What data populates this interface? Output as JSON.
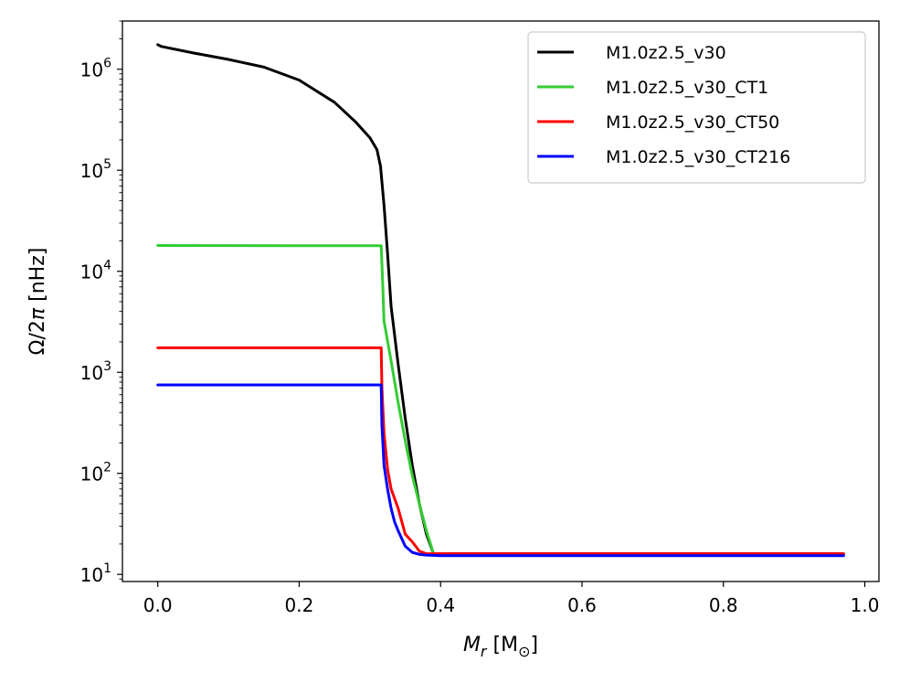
{
  "chart_data": {
    "type": "line",
    "xlabel": {
      "main": "M",
      "sub": "r",
      "unit_pre": " [M",
      "unit_sub": "⊙",
      "unit_post": "]"
    },
    "ylabel": {
      "main": "Ω/2",
      "pi": "π",
      "unit": " [nHz]"
    },
    "xlim": [
      -0.05,
      1.02
    ],
    "ylim": [
      8.5,
      3000000
    ],
    "yscale": "log",
    "x_ticks": [
      0.0,
      0.2,
      0.4,
      0.6,
      0.8,
      1.0
    ],
    "x_tick_labels": [
      "0.0",
      "0.2",
      "0.4",
      "0.6",
      "0.8",
      "1.0"
    ],
    "y_ticks": [
      10,
      100,
      1000,
      10000,
      100000,
      1000000
    ],
    "y_tick_labels": [
      {
        "base": "10",
        "exp": "1"
      },
      {
        "base": "10",
        "exp": "2"
      },
      {
        "base": "10",
        "exp": "3"
      },
      {
        "base": "10",
        "exp": "4"
      },
      {
        "base": "10",
        "exp": "5"
      },
      {
        "base": "10",
        "exp": "6"
      }
    ],
    "grid": false,
    "legend_position": "top-right",
    "series": [
      {
        "name": "M1.0z2.5_v30",
        "color": "#000000",
        "x": [
          0.0,
          0.005,
          0.05,
          0.1,
          0.15,
          0.2,
          0.25,
          0.28,
          0.3,
          0.31,
          0.315,
          0.32,
          0.325,
          0.33,
          0.34,
          0.35,
          0.36,
          0.37,
          0.38,
          0.39,
          0.5,
          0.7,
          0.9,
          0.97
        ],
        "y": [
          1750000,
          1680000,
          1450000,
          1250000,
          1050000,
          780000,
          470000,
          300000,
          210000,
          160000,
          110000,
          45000,
          15000,
          4500,
          1200,
          350,
          120,
          50,
          25,
          16,
          16,
          16,
          16,
          16
        ]
      },
      {
        "name": "M1.0z2.5_v30_CT1",
        "color": "#33cc33",
        "x": [
          0.0,
          0.1,
          0.2,
          0.3,
          0.316,
          0.318,
          0.32,
          0.33,
          0.34,
          0.35,
          0.36,
          0.37,
          0.38,
          0.39,
          0.5,
          0.7,
          0.9,
          0.97
        ],
        "y": [
          18000,
          17950,
          17900,
          17900,
          17900,
          8000,
          3200,
          1300,
          500,
          210,
          95,
          50,
          27,
          16,
          15.5,
          15.5,
          15.5,
          15.5
        ]
      },
      {
        "name": "M1.0z2.5_v30_CT50",
        "color": "#ff0000",
        "x": [
          0.0,
          0.1,
          0.2,
          0.3,
          0.316,
          0.317,
          0.32,
          0.325,
          0.33,
          0.34,
          0.35,
          0.36,
          0.37,
          0.38,
          0.39,
          0.4,
          0.5,
          0.7,
          0.9,
          0.97
        ],
        "y": [
          1750,
          1750,
          1750,
          1750,
          1750,
          700,
          250,
          110,
          70,
          45,
          25,
          21,
          17,
          16,
          16,
          16,
          16,
          16,
          16,
          16
        ]
      },
      {
        "name": "M1.0z2.5_v30_CT216",
        "color": "#0000ff",
        "x": [
          0.0,
          0.1,
          0.2,
          0.3,
          0.316,
          0.317,
          0.32,
          0.325,
          0.33,
          0.335,
          0.34,
          0.35,
          0.36,
          0.37,
          0.38,
          0.4,
          0.5,
          0.7,
          0.9,
          0.97
        ],
        "y": [
          750,
          750,
          750,
          750,
          750,
          300,
          120,
          70,
          45,
          33,
          27,
          19,
          16.5,
          15.8,
          15.5,
          15.3,
          15.3,
          15.3,
          15.3,
          15.3
        ]
      }
    ]
  }
}
